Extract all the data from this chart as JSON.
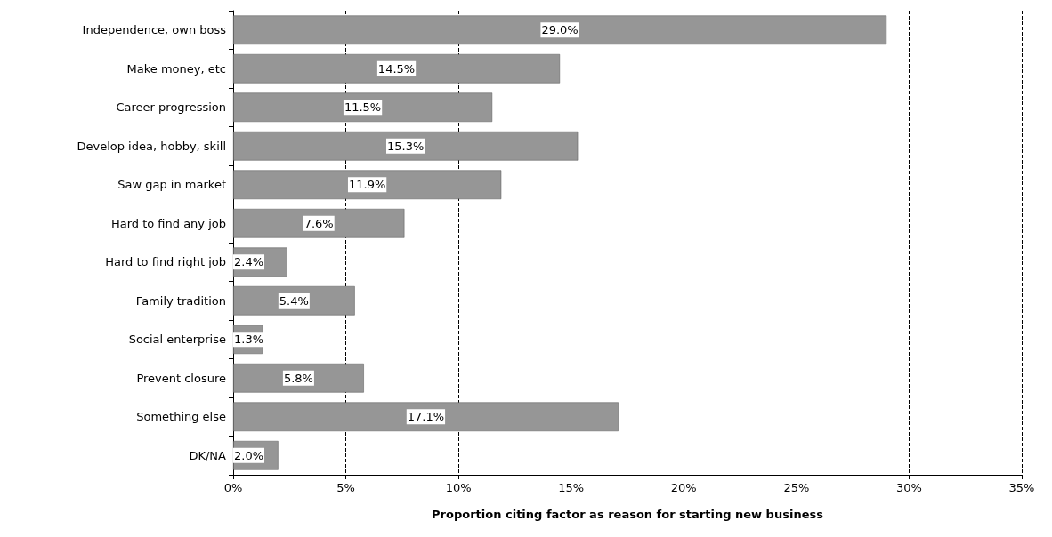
{
  "chart_data": {
    "type": "bar",
    "orientation": "horizontal",
    "xlabel": "Proportion citing factor as reason for starting new business",
    "categories": [
      "Independence, own boss",
      "Make money, etc",
      "Career progression",
      "Develop idea, hobby, skill",
      "Saw gap in market",
      "Hard to find any job",
      "Hard to find right job",
      "Family tradition",
      "Social enterprise",
      "Prevent closure",
      "Something else",
      "DK/NA"
    ],
    "values": [
      29.0,
      14.5,
      11.5,
      15.3,
      11.9,
      7.6,
      2.4,
      5.4,
      1.3,
      5.8,
      17.1,
      2.0
    ],
    "value_labels": [
      "29.0%",
      "14.5%",
      "11.5%",
      "15.3%",
      "11.9%",
      "7.6%",
      "2.4%",
      "5.4%",
      "1.3%",
      "5.8%",
      "17.1%",
      "2.0%"
    ],
    "color": "#969696",
    "xlim": [
      0,
      35
    ],
    "xticks": [
      {
        "value": 0,
        "label": "0%"
      },
      {
        "value": 5,
        "label": "5%"
      },
      {
        "value": 10,
        "label": "10%"
      },
      {
        "value": 15,
        "label": "15%"
      },
      {
        "value": 20,
        "label": "20%"
      },
      {
        "value": 25,
        "label": "25%"
      },
      {
        "value": 30,
        "label": "30%"
      },
      {
        "value": 35,
        "label": "35%"
      }
    ],
    "grid": "x"
  }
}
